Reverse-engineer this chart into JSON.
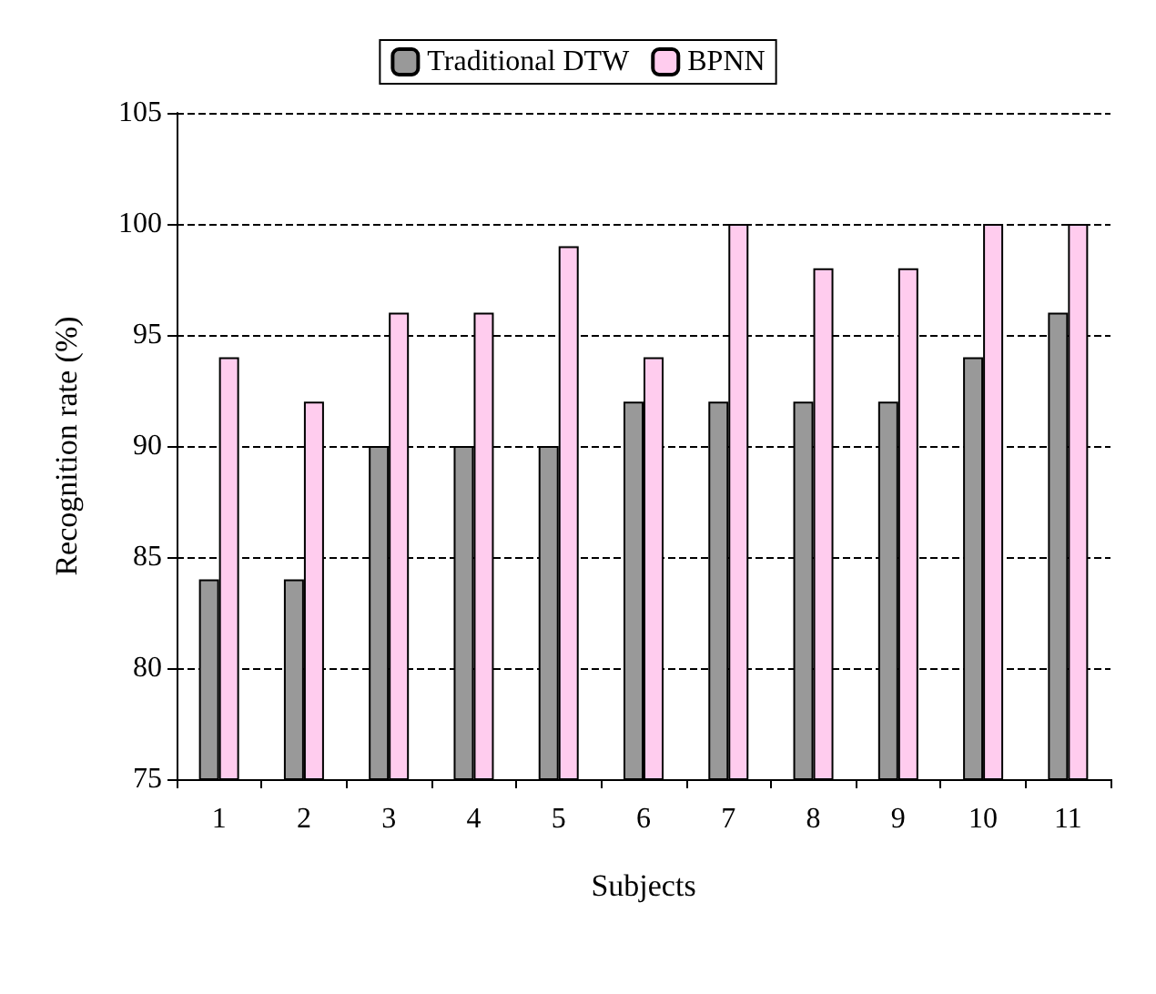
{
  "chart_data": {
    "type": "bar",
    "xlabel": "Subjects",
    "ylabel": "Recognition rate (%)",
    "categories": [
      "1",
      "2",
      "3",
      "4",
      "5",
      "6",
      "7",
      "8",
      "9",
      "10",
      "11"
    ],
    "series": [
      {
        "name": "Traditional DTW",
        "color": "#999999",
        "values": [
          84,
          84,
          90,
          90,
          90,
          92,
          92,
          92,
          92,
          94,
          96
        ]
      },
      {
        "name": "BPNN",
        "color": "#ffccee",
        "values": [
          94,
          92,
          96,
          96,
          99,
          94,
          100,
          98,
          98,
          100,
          100
        ]
      }
    ],
    "ylim": [
      75,
      105
    ],
    "yticks": [
      75,
      80,
      85,
      90,
      95,
      100,
      105
    ],
    "grid": "y",
    "legend": "top"
  }
}
